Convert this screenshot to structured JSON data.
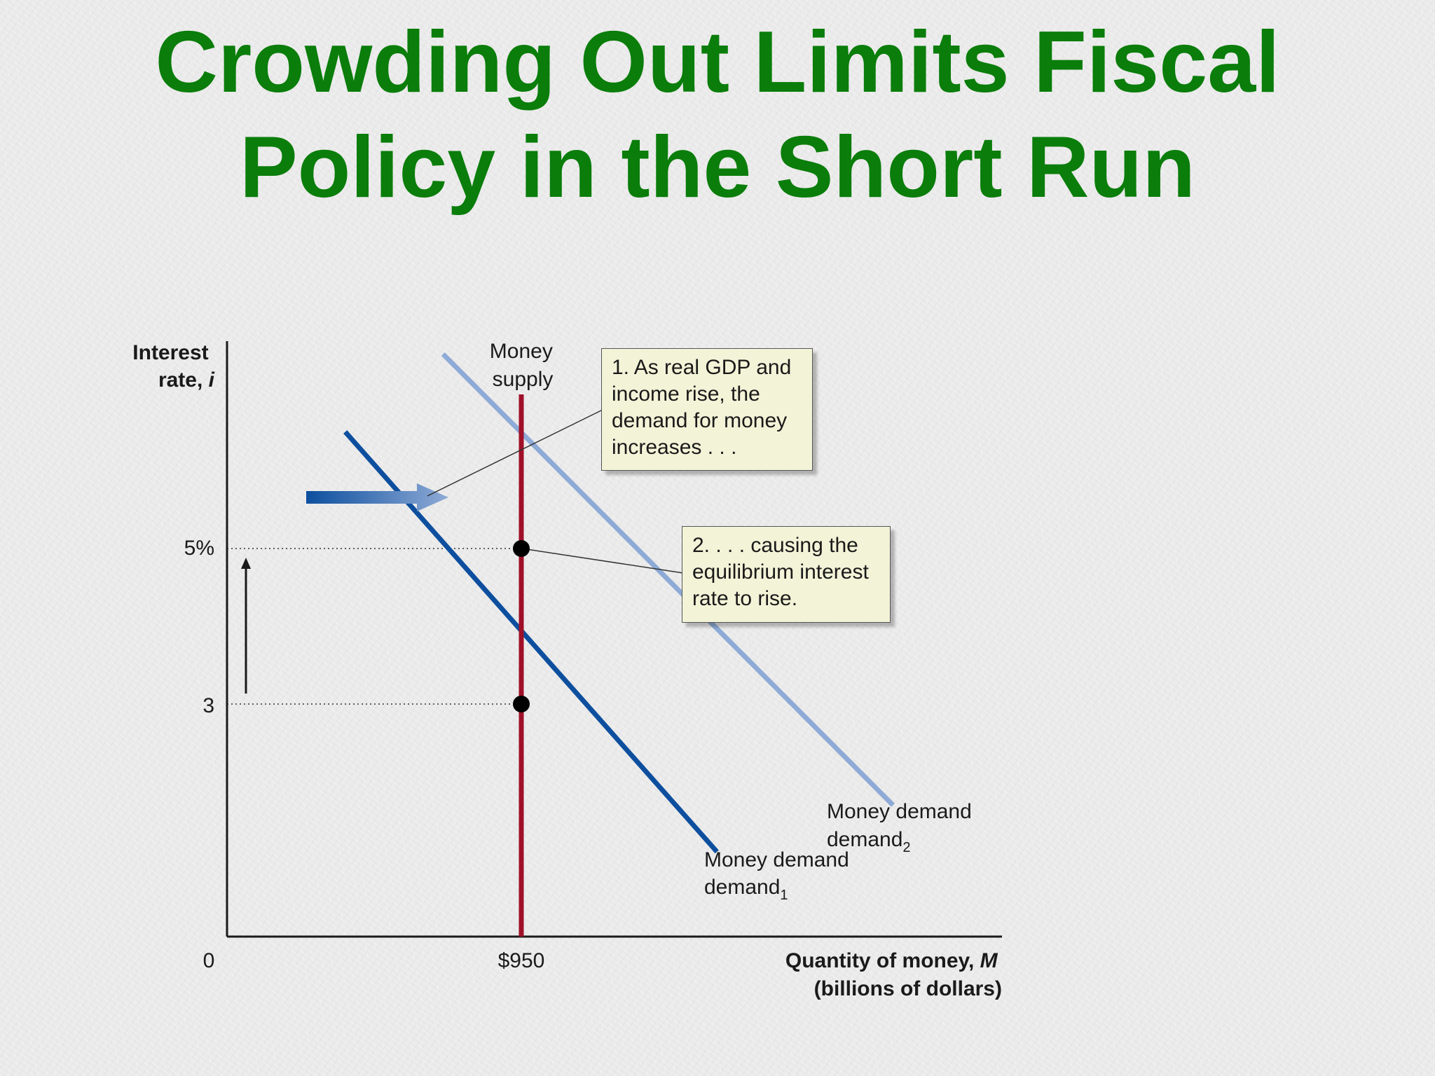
{
  "slide": {
    "title_lines": [
      "Crowding Out Limits Fiscal",
      "Policy in the Short Run"
    ]
  },
  "colors": {
    "title": "#0a7d0a",
    "money_supply": "#a01028",
    "money_demand_1": "#0d4f9e",
    "money_demand_2": "#8eaad6",
    "callout_bg": "#f3f3d8"
  },
  "chart_data": {
    "type": "line",
    "y_axis_label": [
      "Interest",
      "rate, "
    ],
    "y_axis_symbol": "i",
    "x_axis_label": [
      "Quantity of money, ",
      "(billions of dollars)"
    ],
    "x_axis_symbol": "M",
    "origin_label": "0",
    "y_ticks": [
      "5%",
      "3"
    ],
    "y_tick_values": [
      5,
      3
    ],
    "x_ticks": [
      "$950"
    ],
    "x_tick_values": [
      950
    ],
    "money_supply": {
      "label_lines": [
        "Money",
        "supply"
      ],
      "quantity": 950
    },
    "series": [
      {
        "name": "Money demand",
        "subscript": "1",
        "color": "#0d4f9e",
        "points": [
          [
            860,
            6.5
          ],
          [
            1050,
            1.1
          ]
        ],
        "passes_through": [
          950,
          3
        ]
      },
      {
        "name": "Money demand",
        "subscript": "2",
        "color": "#8eaad6",
        "points": [
          [
            910,
            7.5
          ],
          [
            1140,
            1.7
          ]
        ],
        "passes_through": [
          950,
          5
        ]
      }
    ],
    "equilibria": [
      {
        "quantity": 950,
        "rate": 5
      },
      {
        "quantity": 950,
        "rate": 3
      }
    ],
    "callouts": [
      {
        "lines": [
          "1. As real GDP and",
          "income rise, the",
          "demand for money",
          "increases . . ."
        ]
      },
      {
        "lines": [
          "2. . . . causing the",
          "equilibrium interest",
          "rate to rise."
        ]
      }
    ]
  }
}
